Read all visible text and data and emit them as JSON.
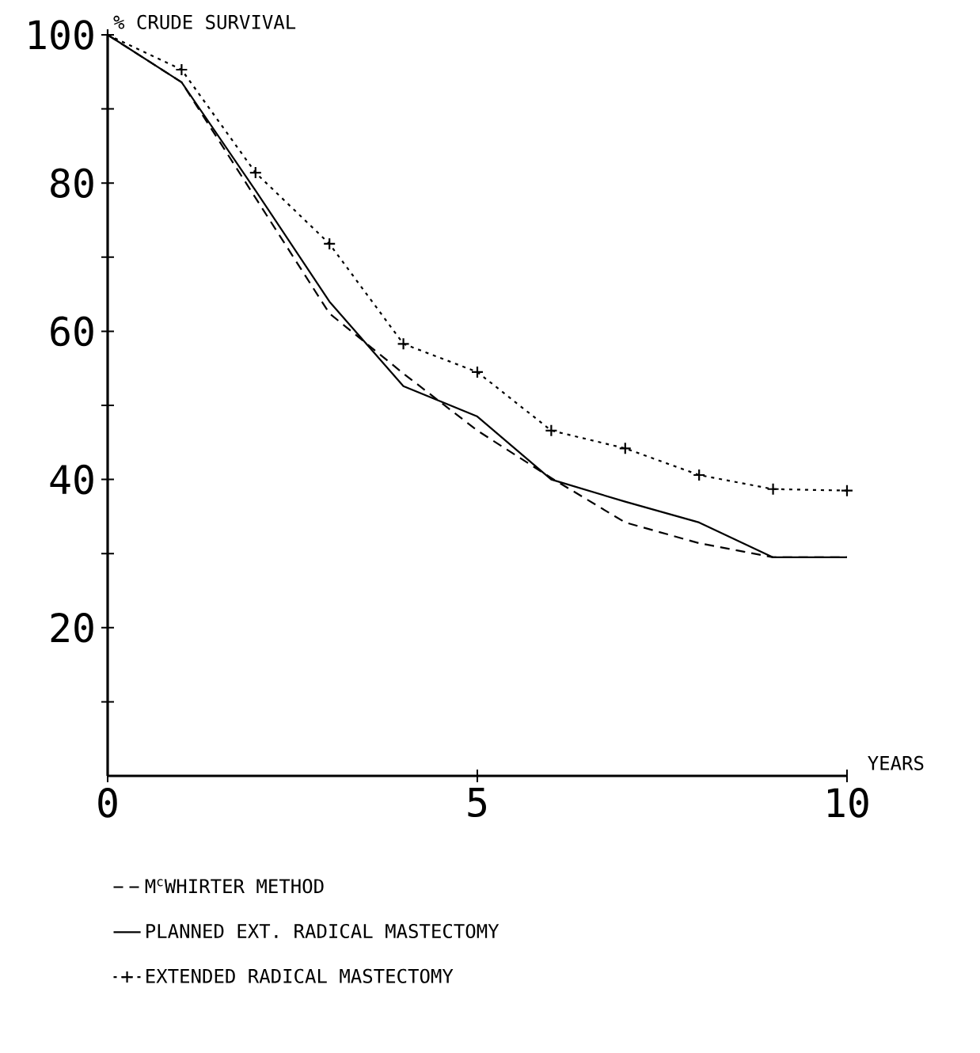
{
  "chart_data": {
    "type": "line",
    "ylabel": "% CRUDE SURVIVAL",
    "xlabel": "YEARS",
    "x": [
      0,
      1,
      2,
      3,
      4,
      5,
      6,
      7,
      8,
      9,
      10
    ],
    "xlim": [
      0,
      10
    ],
    "ylim": [
      0,
      100
    ],
    "xticks": [
      0,
      5,
      10
    ],
    "yticks": [
      {
        "value": 10,
        "label": null
      },
      20,
      {
        "value": 30,
        "label": null
      },
      40,
      {
        "value": 50,
        "label": null
      },
      60,
      {
        "value": 70,
        "label": null
      },
      80,
      {
        "value": 90,
        "label": null
      },
      100
    ],
    "legend": "bottom",
    "grid": false,
    "series": [
      {
        "name": "M$^{c}$WHIRTER METHOD",
        "color": "#000000",
        "line_style": "dashed",
        "marker": "none",
        "values": [
          100,
          93.6,
          78,
          62.4,
          54.3,
          46.6,
          40.2,
          34.2,
          31.4,
          29.5,
          29.5
        ]
      },
      {
        "name": "PLANNED EXT. RADICAL MASTECTOMY",
        "color": "#000000",
        "line_style": "solid",
        "marker": "none",
        "values": [
          100,
          93.6,
          79,
          64,
          52.6,
          48.5,
          40,
          37,
          34.2,
          29.5,
          29.5
        ]
      },
      {
        "name": "EXTENDED RADICAL MASTECTOMY",
        "color": "#000000",
        "line_style": "dotted",
        "marker": "cross",
        "values": [
          100,
          95.3,
          81.4,
          71.8,
          58.3,
          54.5,
          46.6,
          44.2,
          40.6,
          38.7,
          38.5
        ]
      }
    ]
  }
}
